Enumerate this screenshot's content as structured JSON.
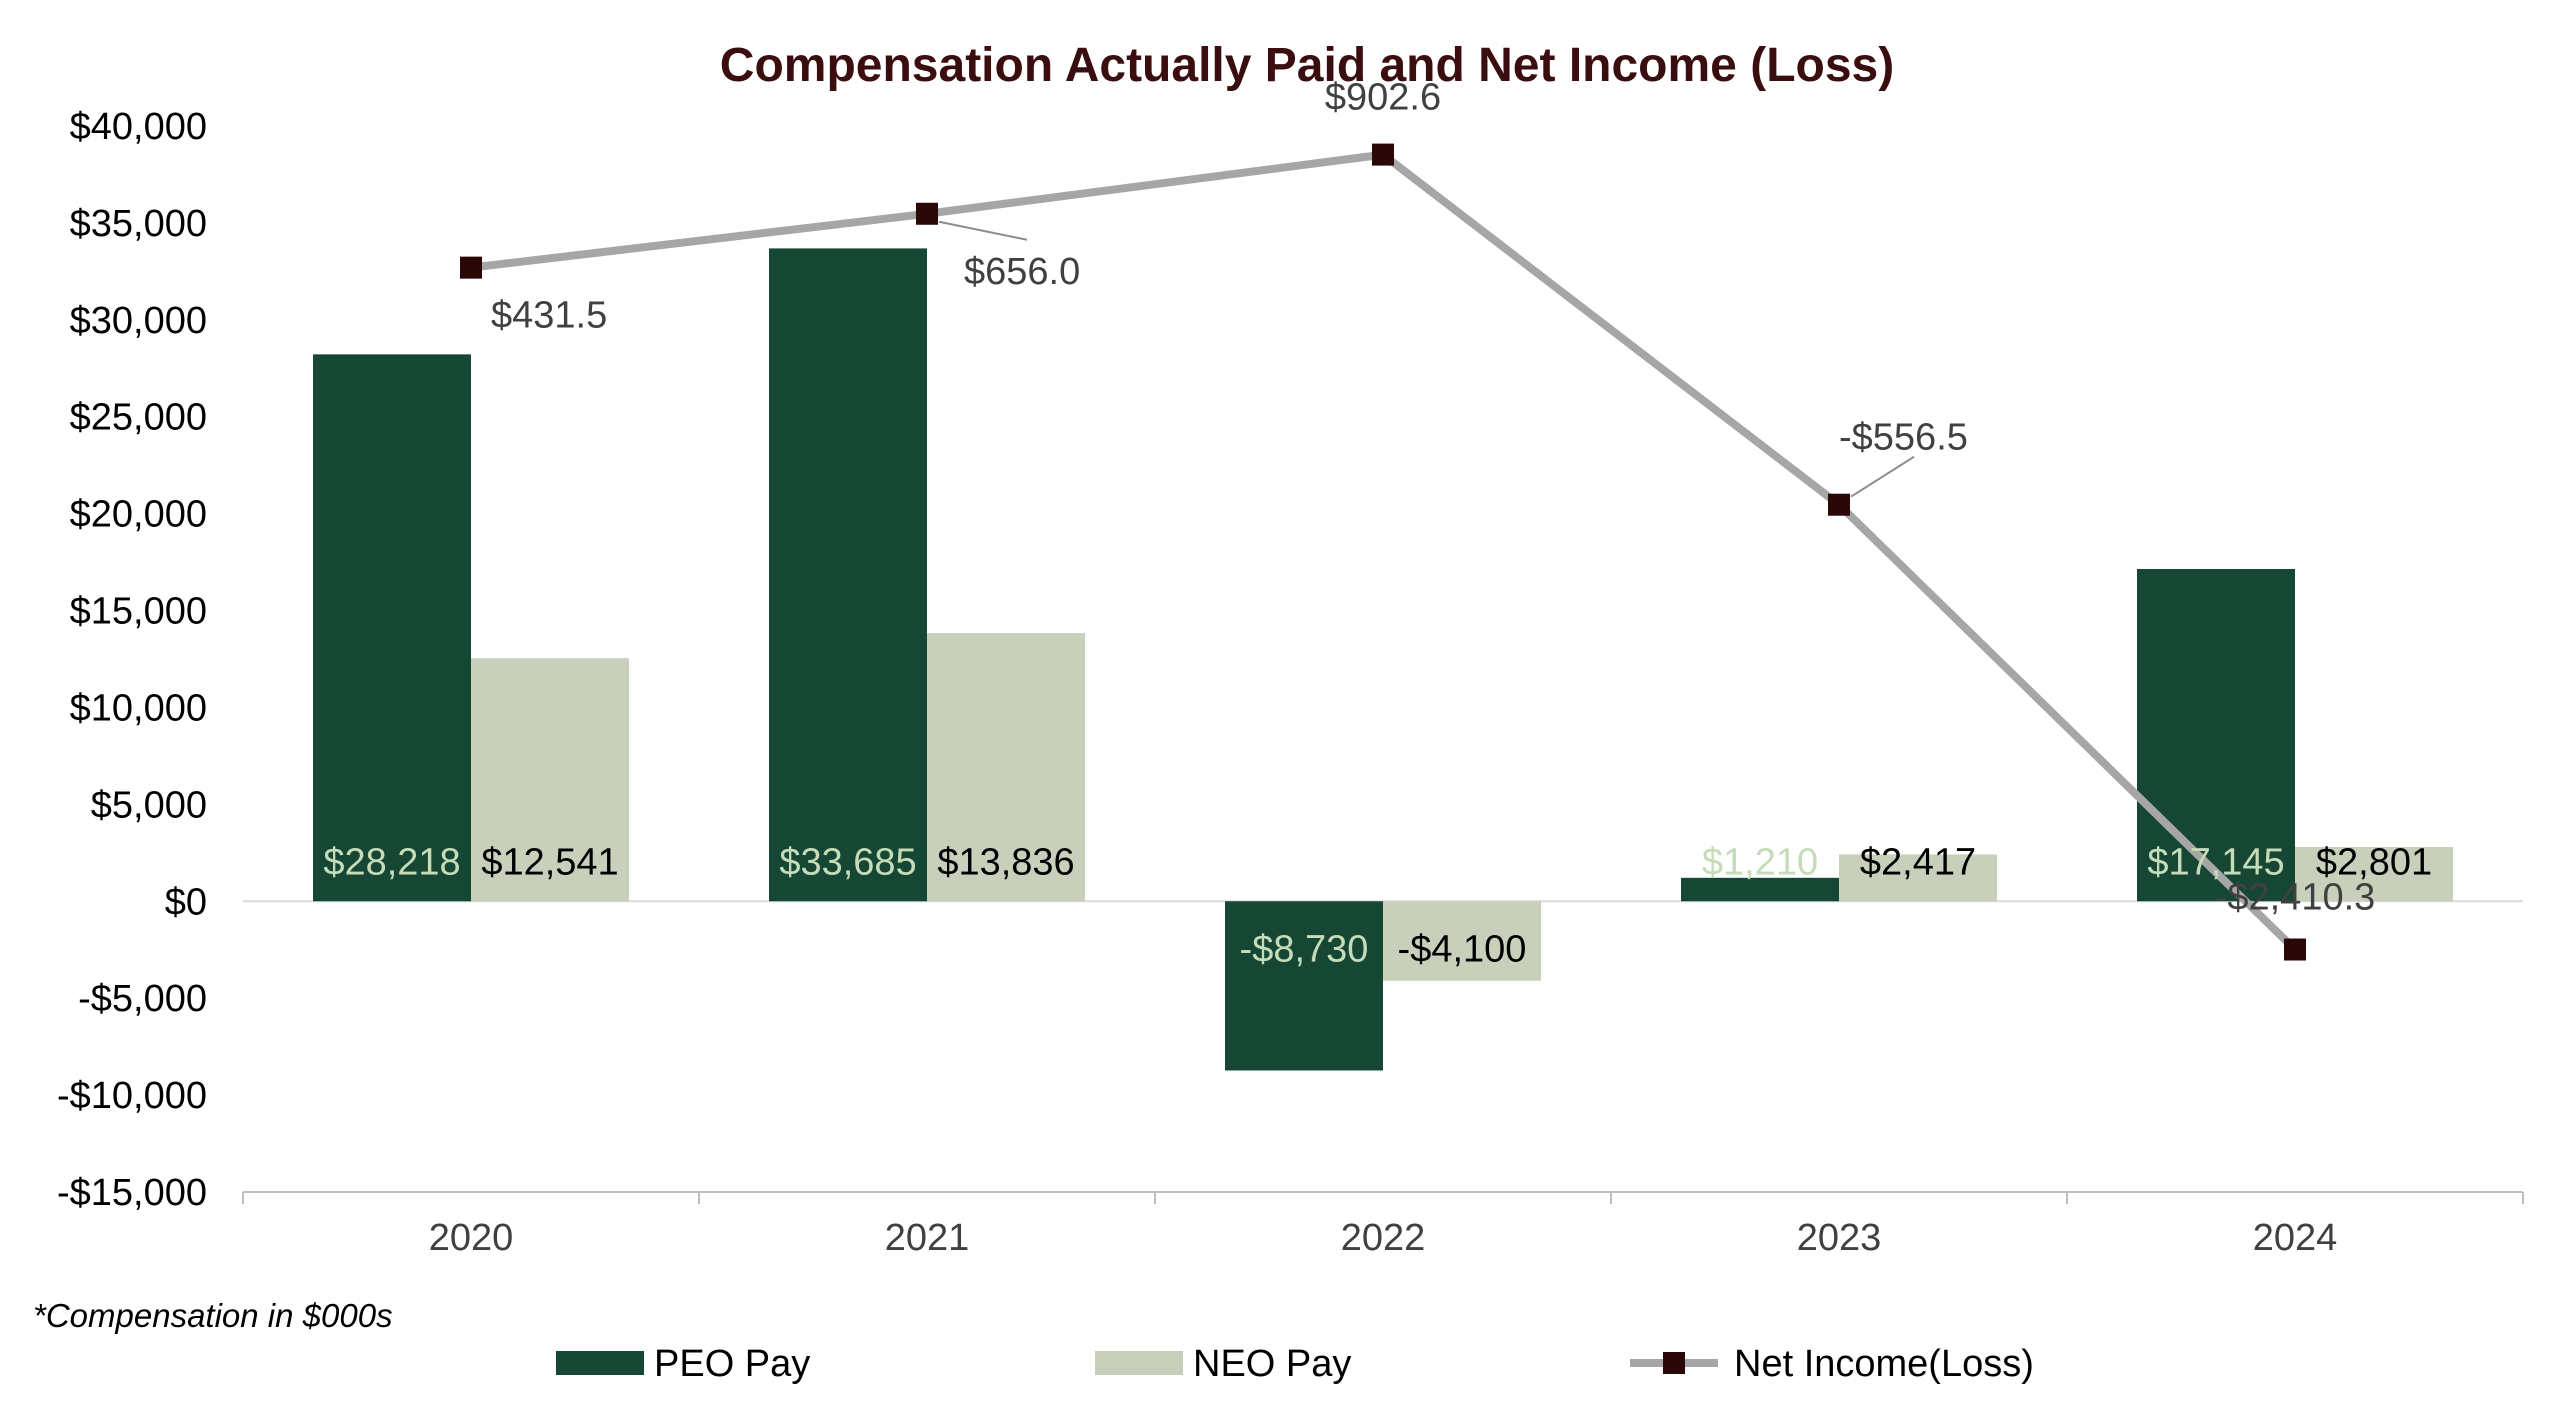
{
  "chart_data": {
    "type": "bar",
    "title": "Compensation Actually Paid and Net Income (Loss)",
    "categories": [
      "2020",
      "2021",
      "2022",
      "2023",
      "2024"
    ],
    "y_axis": {
      "ylim": [
        -15000,
        40000
      ],
      "ticks": [
        40000,
        35000,
        30000,
        25000,
        20000,
        15000,
        10000,
        5000,
        0,
        -5000,
        -10000,
        -15000
      ],
      "tick_labels": [
        "$40,000",
        "$35,000",
        "$30,000",
        "$25,000",
        "$20,000",
        "$15,000",
        "$10,000",
        "$5,000",
        "$0",
        "-$5,000",
        "-$10,000",
        "-$15,000"
      ]
    },
    "series": [
      {
        "name": "PEO Pay",
        "type": "bar",
        "color": "#164734",
        "label_color": "#c6dcb8",
        "values": [
          28218,
          33685,
          -8730,
          1210,
          17145
        ],
        "labels": [
          "$28,218",
          "$33,685",
          "-$8,730",
          "$1,210",
          "$17,145"
        ]
      },
      {
        "name": "NEO Pay",
        "type": "bar",
        "color": "#c8d0bc",
        "label_color": "#000000",
        "values": [
          12541,
          13836,
          -4100,
          2417,
          2801
        ],
        "labels": [
          "$12,541",
          "$13,836",
          "-$4,100",
          "$2,417",
          "$2,801"
        ]
      },
      {
        "name": "Net Income(Loss)",
        "type": "line",
        "color": "#a6a6a6",
        "marker_color": "#2a0808",
        "values": [
          431.5,
          656.0,
          902.6,
          -556.5,
          -2410.3
        ],
        "labels": [
          "$431.5",
          "$656.0",
          "$902.6",
          "-$556.5",
          "-$2,410.3"
        ]
      }
    ],
    "grid": false,
    "legend_position": "bottom",
    "footnote": "*Compensation in $000s"
  }
}
